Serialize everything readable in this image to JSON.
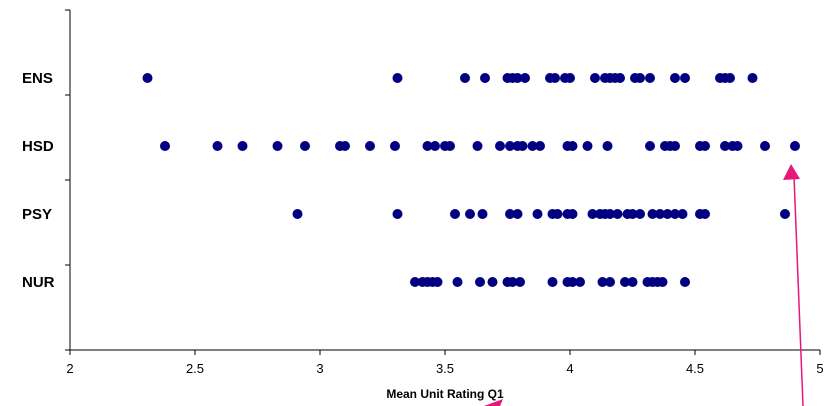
{
  "colors": {
    "points": "#000080",
    "arrow": "#e8177a",
    "axis": "#000000",
    "plot_bg": "#ffffff"
  },
  "chart_data": {
    "type": "scatter",
    "title": "",
    "xlabel": "Mean Unit Rating Q1",
    "ylabel": "",
    "xlim": [
      2,
      5
    ],
    "x_ticks": [
      "2",
      "2.5",
      "3",
      "3.5",
      "4",
      "4.5",
      "5"
    ],
    "categories": [
      "ENS",
      "HSD",
      "PSY",
      "NUR"
    ],
    "grid": false,
    "legend": "none",
    "series": [
      {
        "category": "ENS",
        "values": [
          2.31,
          3.31,
          3.58,
          3.66,
          3.75,
          3.77,
          3.79,
          3.82,
          3.92,
          3.94,
          3.98,
          4.0,
          4.1,
          4.14,
          4.16,
          4.18,
          4.2,
          4.26,
          4.28,
          4.32,
          4.42,
          4.46,
          4.6,
          4.62,
          4.64,
          4.73
        ]
      },
      {
        "category": "HSD",
        "values": [
          2.38,
          2.59,
          2.69,
          2.83,
          2.94,
          3.08,
          3.1,
          3.2,
          3.3,
          3.43,
          3.46,
          3.5,
          3.52,
          3.63,
          3.72,
          3.76,
          3.79,
          3.81,
          3.85,
          3.88,
          3.99,
          4.01,
          4.07,
          4.15,
          4.32,
          4.38,
          4.4,
          4.42,
          4.52,
          4.54,
          4.62,
          4.65,
          4.67,
          4.78,
          4.9
        ]
      },
      {
        "category": "PSY",
        "values": [
          2.91,
          3.31,
          3.54,
          3.6,
          3.65,
          3.76,
          3.79,
          3.87,
          3.93,
          3.95,
          3.99,
          4.01,
          4.09,
          4.12,
          4.14,
          4.16,
          4.19,
          4.23,
          4.25,
          4.28,
          4.33,
          4.36,
          4.39,
          4.42,
          4.45,
          4.52,
          4.54,
          4.86
        ]
      },
      {
        "category": "NUR",
        "values": [
          3.38,
          3.41,
          3.43,
          3.45,
          3.47,
          3.55,
          3.64,
          3.69,
          3.75,
          3.77,
          3.8,
          3.93,
          3.99,
          4.01,
          4.04,
          4.13,
          4.16,
          4.22,
          4.25,
          4.31,
          4.33,
          4.35,
          4.37,
          4.46
        ]
      }
    ],
    "annotations": [
      {
        "type": "arrow",
        "points_to": {
          "category": "HSD",
          "x": 4.9
        }
      }
    ]
  }
}
